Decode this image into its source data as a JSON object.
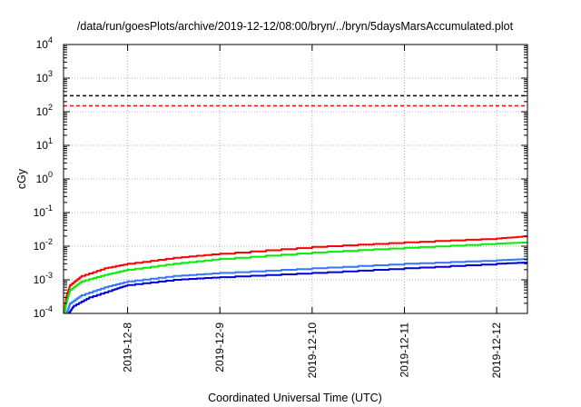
{
  "chart_data": {
    "type": "line",
    "title": "/data/run/goesPlots/archive/2019-12-12/08:00/bryn/../bryn/5daysMarsAccumulated.plot",
    "xlabel": "Coordinated Universal Time (UTC)",
    "ylabel": "cGy",
    "yscale": "log",
    "ylim": [
      0.0001,
      10000
    ],
    "xlim": [
      "2019-12-07 07:20",
      "2019-12-12 08:00"
    ],
    "grid": true,
    "y_ticks": [
      {
        "base": "10",
        "exp": "-4"
      },
      {
        "base": "10",
        "exp": "-3"
      },
      {
        "base": "10",
        "exp": "-2"
      },
      {
        "base": "10",
        "exp": "-1"
      },
      {
        "base": "10",
        "exp": "0"
      },
      {
        "base": "10",
        "exp": "1"
      },
      {
        "base": "10",
        "exp": "2"
      },
      {
        "base": "10",
        "exp": "3"
      },
      {
        "base": "10",
        "exp": "4"
      }
    ],
    "x_ticks": [
      "2019-12-8",
      "2019-12-9",
      "2019-12-10",
      "2019-12-11",
      "2019-12-12"
    ],
    "thresholds": [
      {
        "value": 300,
        "color": "#000000",
        "style": "dashed"
      },
      {
        "value": 150,
        "color": "#ff0000",
        "style": "dashed"
      }
    ],
    "series": [
      {
        "color": "#ff0000",
        "x": [
          "2019-12-07 07:35",
          "2019-12-07 08:00",
          "2019-12-07 09:00",
          "2019-12-07 12:00",
          "2019-12-07 18:00",
          "2019-12-08 00:00",
          "2019-12-08 12:00",
          "2019-12-09 00:00",
          "2019-12-10 00:00",
          "2019-12-11 00:00",
          "2019-12-12 00:00",
          "2019-12-12 08:00"
        ],
        "values": [
          0.0001,
          0.0003,
          0.0007,
          0.0013,
          0.0022,
          0.003,
          0.0045,
          0.006,
          0.0095,
          0.013,
          0.017,
          0.02
        ]
      },
      {
        "color": "#00ee00",
        "x": [
          "2019-12-07 07:38",
          "2019-12-07 08:00",
          "2019-12-07 09:00",
          "2019-12-07 12:00",
          "2019-12-07 18:00",
          "2019-12-08 00:00",
          "2019-12-08 12:00",
          "2019-12-09 00:00",
          "2019-12-10 00:00",
          "2019-12-11 00:00",
          "2019-12-12 00:00",
          "2019-12-12 08:00"
        ],
        "values": [
          0.0001,
          0.0002,
          0.0005,
          0.0009,
          0.0014,
          0.002,
          0.003,
          0.0042,
          0.0065,
          0.009,
          0.012,
          0.013
        ]
      },
      {
        "color": "#3377ff",
        "x": [
          "2019-12-07 08:05",
          "2019-12-07 09:00",
          "2019-12-07 12:00",
          "2019-12-07 18:00",
          "2019-12-08 00:00",
          "2019-12-08 12:00",
          "2019-12-09 00:00",
          "2019-12-10 00:00",
          "2019-12-11 00:00",
          "2019-12-12 00:00",
          "2019-12-12 08:00"
        ],
        "values": [
          0.0001,
          0.0002,
          0.00035,
          0.0006,
          0.0009,
          0.0013,
          0.0016,
          0.0022,
          0.003,
          0.0038,
          0.0042
        ]
      },
      {
        "color": "#0000dd",
        "x": [
          "2019-12-07 08:35",
          "2019-12-07 10:00",
          "2019-12-07 14:00",
          "2019-12-07 20:00",
          "2019-12-08 00:00",
          "2019-12-08 12:00",
          "2019-12-09 00:00",
          "2019-12-10 00:00",
          "2019-12-11 00:00",
          "2019-12-12 00:00",
          "2019-12-12 08:00"
        ],
        "values": [
          0.0001,
          0.00017,
          0.0003,
          0.0005,
          0.0007,
          0.001,
          0.0012,
          0.0016,
          0.0022,
          0.003,
          0.0033
        ]
      }
    ]
  }
}
